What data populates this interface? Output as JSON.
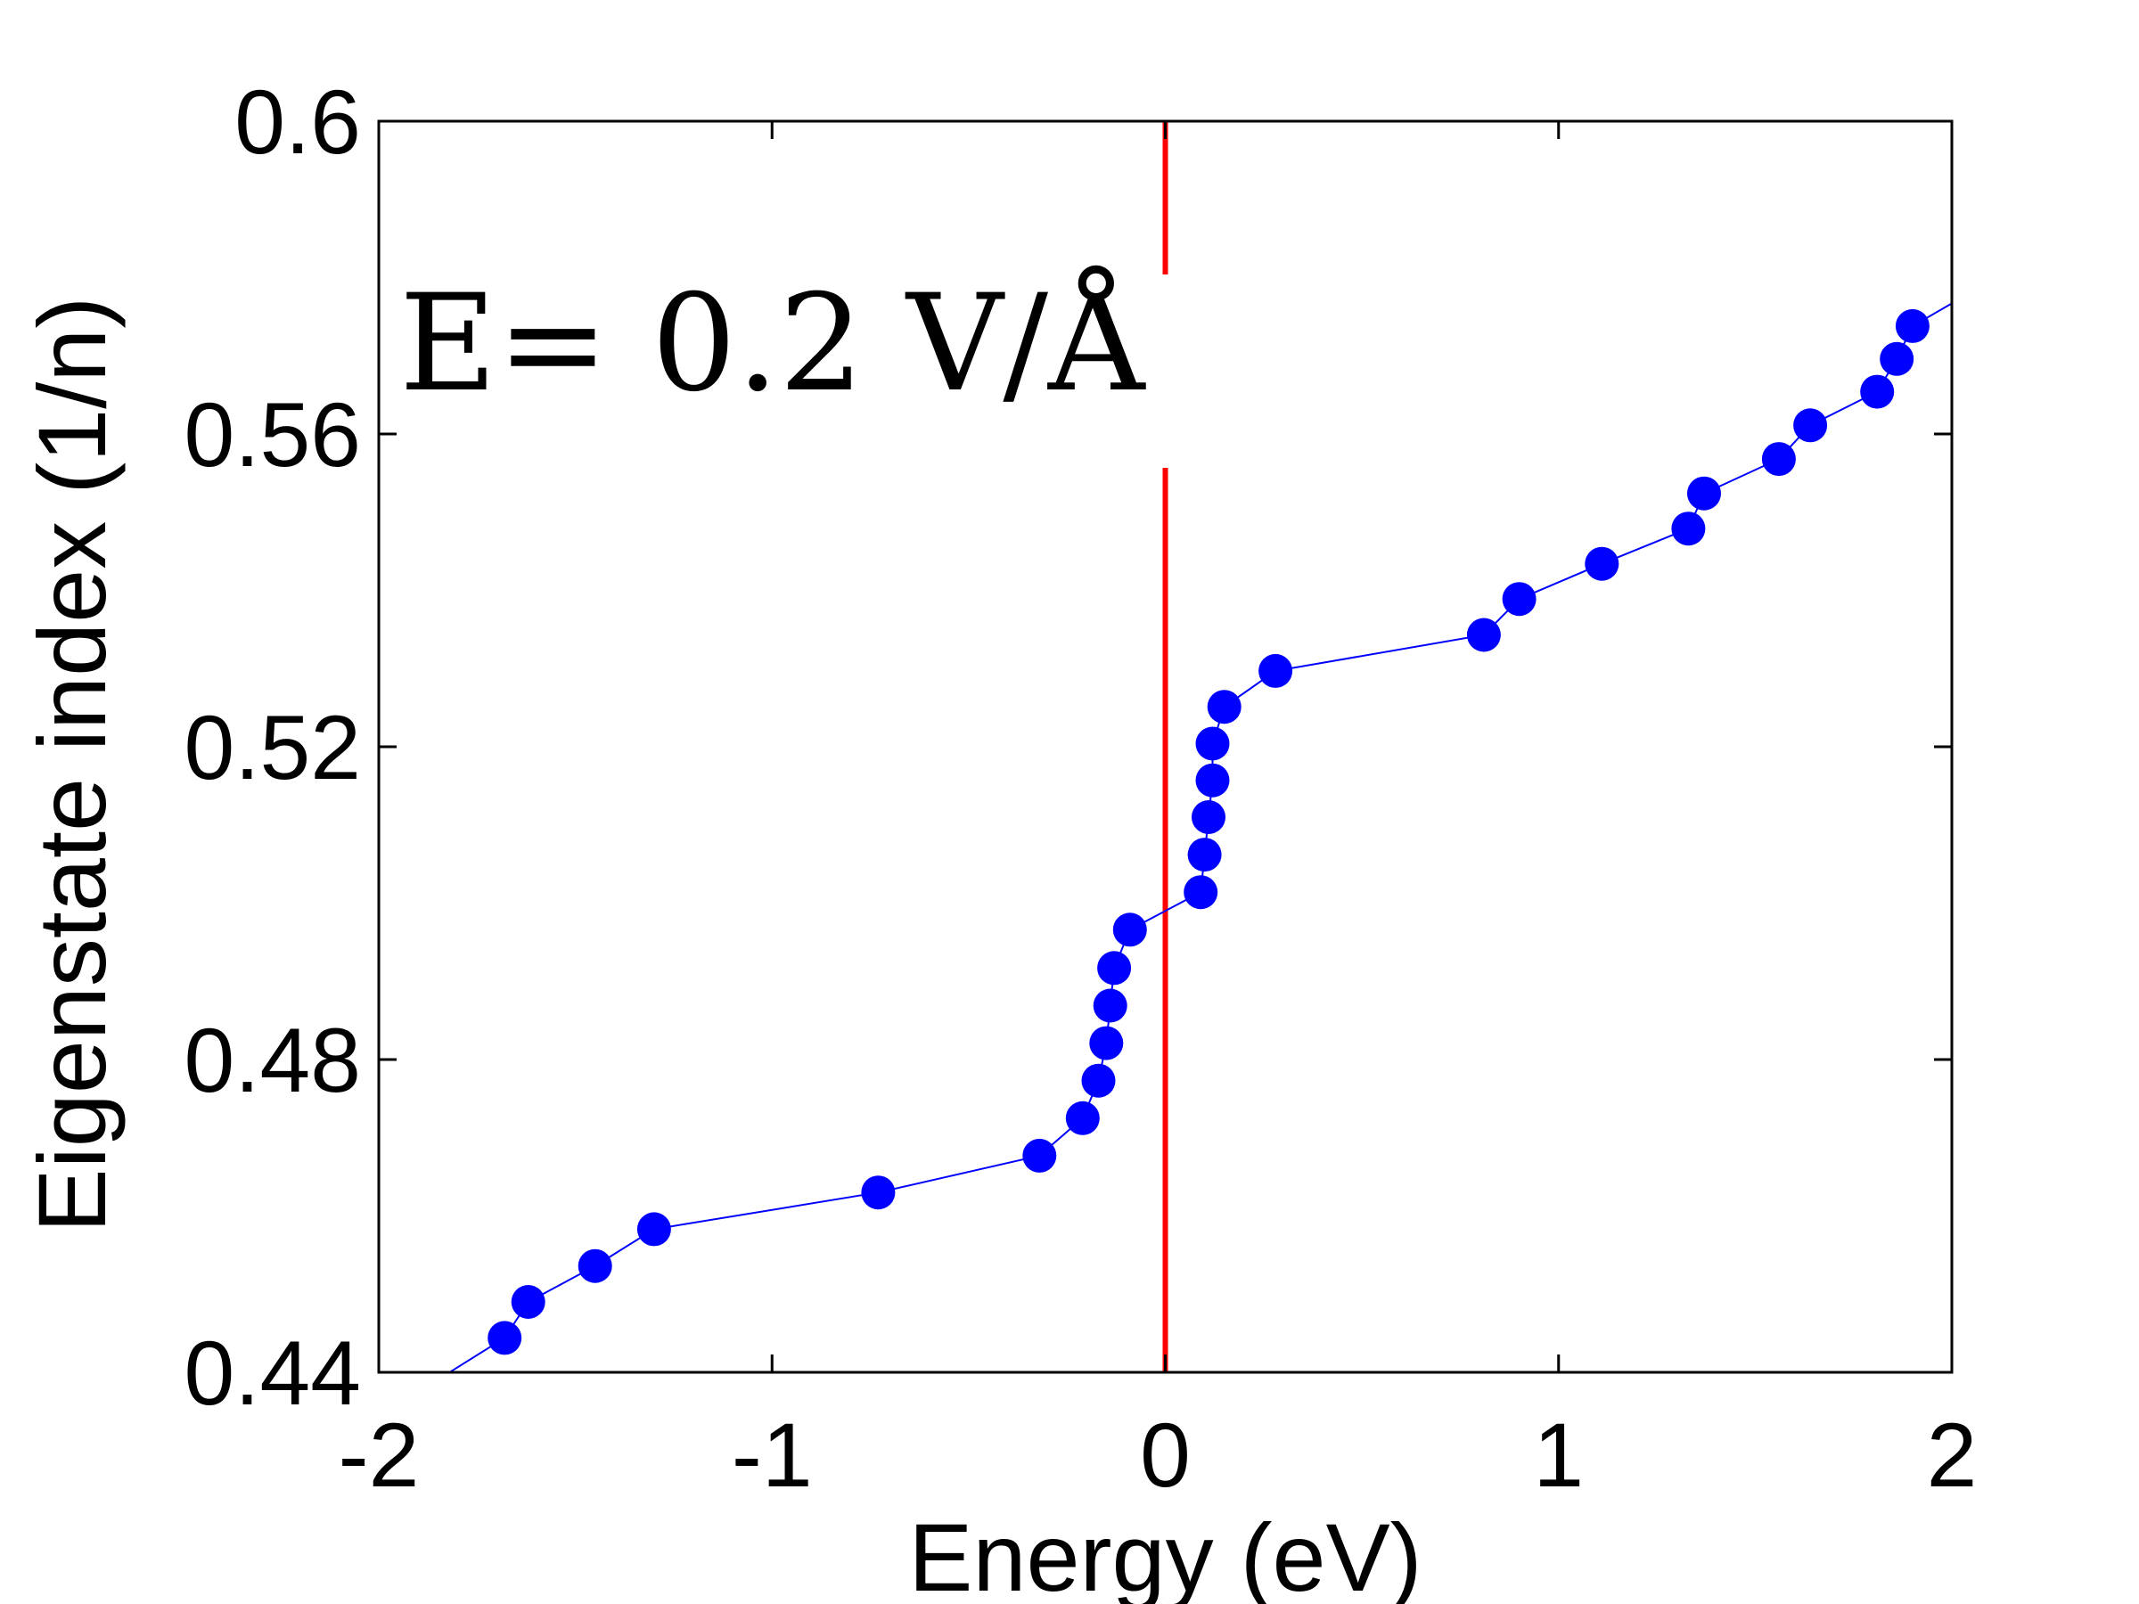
{
  "chart_data": {
    "type": "line",
    "xlabel": "Energy (eV)",
    "ylabel": "Eigenstate index (1/n)",
    "xlim": [
      -2,
      2
    ],
    "ylim": [
      0.44,
      0.6
    ],
    "x_ticks": [
      -2,
      -1,
      0,
      1,
      2
    ],
    "x_tick_labels": [
      "-2",
      "-1",
      "0",
      "1",
      "2"
    ],
    "y_ticks": [
      0.44,
      0.48,
      0.52,
      0.56,
      0.6
    ],
    "y_tick_labels": [
      "0.44",
      "0.48",
      "0.52",
      "0.56",
      "0.6"
    ],
    "grid": false,
    "annotation": "E= 0.2 V/Å",
    "vline": {
      "x": 0,
      "color": "#ff0000"
    },
    "series": [
      {
        "color": "#0000ff",
        "marker": "circle",
        "line_from": [
          -1.82,
          0.44
        ],
        "line_to": [
          2.0,
          0.5767
        ],
        "x": [
          -1.68,
          -1.62,
          -1.45,
          -1.3,
          -0.73,
          -0.32,
          -0.21,
          -0.17,
          -0.15,
          -0.14,
          -0.13,
          -0.09,
          0.09,
          0.1,
          0.11,
          0.12,
          0.12,
          0.15,
          0.28,
          0.81,
          0.9,
          1.11,
          1.33,
          1.37,
          1.56,
          1.64,
          1.81,
          1.86,
          1.9
        ],
        "y": [
          0.4444,
          0.449,
          0.4536,
          0.4583,
          0.463,
          0.4677,
          0.4725,
          0.4773,
          0.4821,
          0.4869,
          0.4917,
          0.4966,
          0.5014,
          0.5062,
          0.511,
          0.5157,
          0.5204,
          0.5251,
          0.5297,
          0.5343,
          0.5389,
          0.5434,
          0.5479,
          0.5524,
          0.5568,
          0.5611,
          0.5654,
          0.5696,
          0.5738
        ]
      }
    ]
  }
}
